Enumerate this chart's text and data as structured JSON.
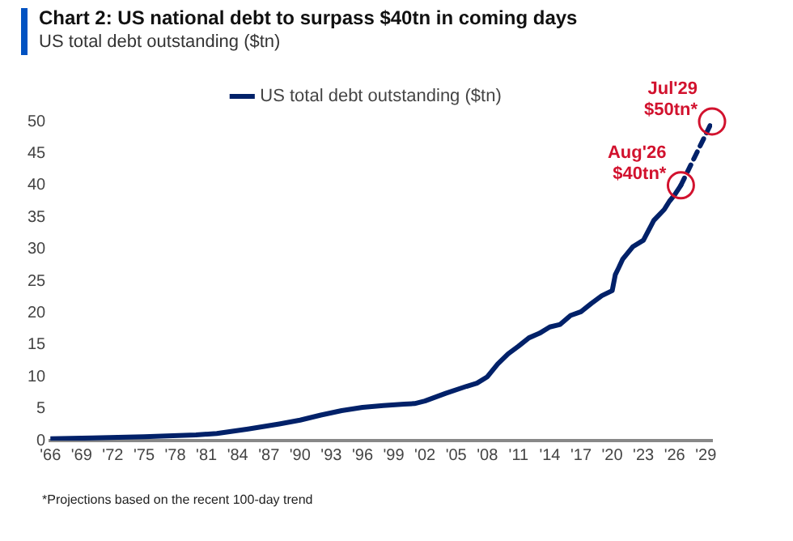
{
  "chart_data": {
    "type": "line",
    "title": "Chart 2: US national debt to surpass $40tn in coming days",
    "subtitle": "US total debt outstanding ($tn)",
    "xlim": [
      1966,
      2029.6
    ],
    "xticks": [
      {
        "value": 1966,
        "label": "'66"
      },
      {
        "value": 1969,
        "label": "'69"
      },
      {
        "value": 1972,
        "label": "'72"
      },
      {
        "value": 1975,
        "label": "'75"
      },
      {
        "value": 1978,
        "label": "'78"
      },
      {
        "value": 1981,
        "label": "'81"
      },
      {
        "value": 1984,
        "label": "'84"
      },
      {
        "value": 1987,
        "label": "'87"
      },
      {
        "value": 1990,
        "label": "'90"
      },
      {
        "value": 1993,
        "label": "'93"
      },
      {
        "value": 1996,
        "label": "'96"
      },
      {
        "value": 1999,
        "label": "'99"
      },
      {
        "value": 2002,
        "label": "'02"
      },
      {
        "value": 2005,
        "label": "'05"
      },
      {
        "value": 2008,
        "label": "'08"
      },
      {
        "value": 2011,
        "label": "'11"
      },
      {
        "value": 2014,
        "label": "'14"
      },
      {
        "value": 2017,
        "label": "'17"
      },
      {
        "value": 2020,
        "label": "'20"
      },
      {
        "value": 2023,
        "label": "'23"
      },
      {
        "value": 2026,
        "label": "'26"
      },
      {
        "value": 2029,
        "label": "'29"
      }
    ],
    "ylim": [
      0,
      50
    ],
    "yticks": [
      0,
      5,
      10,
      15,
      20,
      25,
      30,
      35,
      40,
      45,
      50
    ],
    "grid": false,
    "legend": "top",
    "series": [
      {
        "name": "US total debt outstanding ($tn)",
        "color": "#012169",
        "line_style": "solid",
        "x": [
          1966,
          1970,
          1975,
          1980,
          1982,
          1985,
          1988,
          1990,
          1992,
          1994,
          1996,
          1998,
          2000,
          2001,
          2002,
          2004,
          2006,
          2007,
          2008,
          2009,
          2010,
          2011,
          2012,
          2013,
          2014,
          2015,
          2016,
          2017,
          2018,
          2019,
          2020,
          2020.3,
          2020.6,
          2021,
          2022,
          2023,
          2024,
          2025,
          2025.5,
          2026,
          2026.6
        ],
        "values": [
          0.3,
          0.4,
          0.6,
          0.9,
          1.1,
          1.8,
          2.6,
          3.2,
          4.0,
          4.7,
          5.2,
          5.5,
          5.7,
          5.8,
          6.2,
          7.4,
          8.5,
          9.0,
          10.0,
          12.0,
          13.6,
          14.8,
          16.1,
          16.8,
          17.8,
          18.2,
          19.6,
          20.2,
          21.5,
          22.7,
          23.5,
          26.0,
          27.0,
          28.4,
          30.4,
          31.4,
          34.5,
          36.2,
          37.5,
          38.5,
          40.0
        ]
      },
      {
        "color": "#012169",
        "line_style": "dashed",
        "x": [
          2026.6,
          2029.6
        ],
        "values": [
          40.0,
          50.0
        ]
      }
    ],
    "annotations": [
      {
        "text": "Aug'26\n$40tn*",
        "x": 2026.6,
        "y": 40
      },
      {
        "text": "Jul'29\n$50tn*",
        "x": 2029.6,
        "y": 50
      },
      "*Projections based on the recent 100-day trend"
    ]
  }
}
